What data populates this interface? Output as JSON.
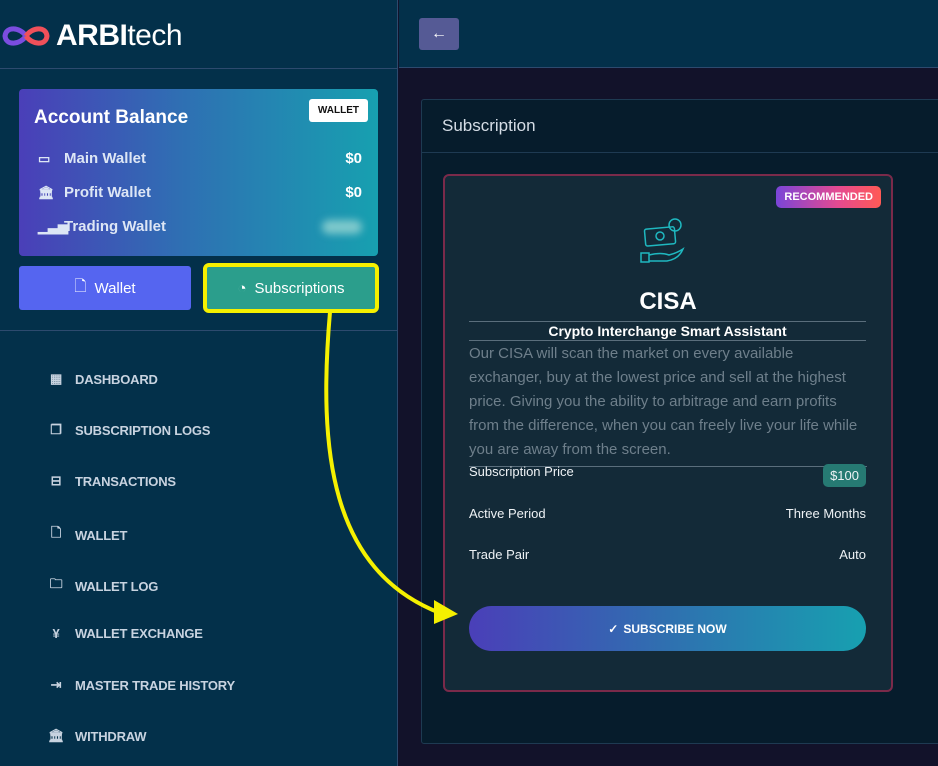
{
  "brand": {
    "name_bold": "ARBI",
    "name_light": "tech"
  },
  "balance": {
    "title": "Account Balance",
    "badge": "WALLET",
    "rows": [
      {
        "label": "Main Wallet",
        "value": "$0",
        "icon": "wallet-icon"
      },
      {
        "label": "Profit Wallet",
        "value": "$0",
        "icon": "bank-icon"
      },
      {
        "label": "Trading Wallet",
        "value": "",
        "icon": "signal-icon"
      }
    ]
  },
  "buttons": {
    "wallet": "Wallet",
    "subscriptions": "Subscriptions"
  },
  "nav": [
    {
      "label": "DASHBOARD",
      "icon": "dashboard-icon"
    },
    {
      "label": "SUBSCRIPTION LOGS",
      "icon": "copy-icon"
    },
    {
      "label": "TRANSACTIONS",
      "icon": "inbox-icon"
    },
    {
      "label": "WALLET",
      "icon": "file-plus-icon"
    },
    {
      "label": "WALLET LOG",
      "icon": "folder-icon"
    },
    {
      "label": "WALLET EXCHANGE",
      "icon": "exchange-icon"
    },
    {
      "label": "MASTER TRADE HISTORY",
      "icon": "exit-icon"
    },
    {
      "label": "WITHDRAW",
      "icon": "bank-icon"
    }
  ],
  "panel": {
    "title": "Subscription"
  },
  "plan": {
    "badge": "RECOMMENDED",
    "name": "CISA",
    "full_name": "Crypto Interchange Smart Assistant",
    "description": "Our CISA will scan the market on every available exchanger, buy at the lowest price and sell at the highest price. Giving you the ability to arbitrage and earn profits from the difference, when you can freely live your life while you are away from the screen.",
    "price_label": "Subscription Price",
    "price": "$100",
    "period_label": "Active Period",
    "period": "Three Months",
    "pair_label": "Trade Pair",
    "pair": "Auto",
    "cta": "SUBSCRIBE NOW"
  },
  "colors": {
    "annotation": "#f5f000",
    "accent": "#2b9e8c"
  }
}
